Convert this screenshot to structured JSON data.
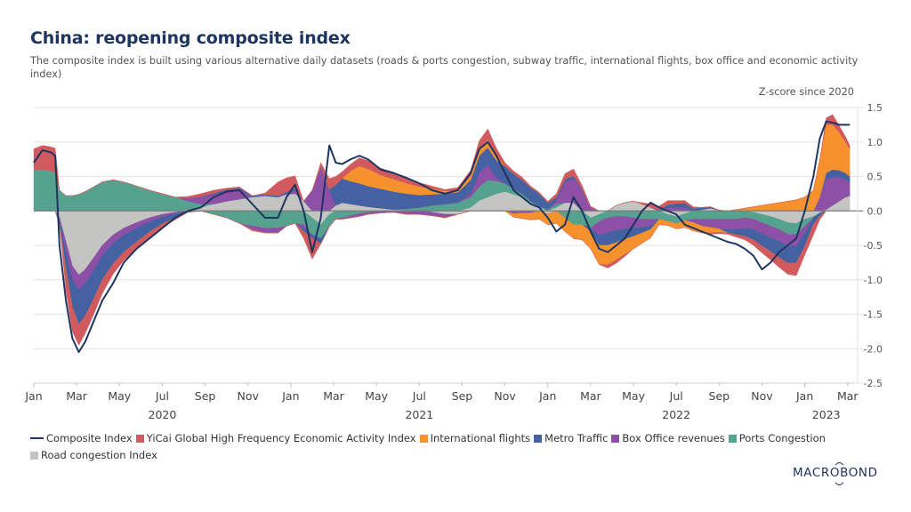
{
  "header": {
    "title": "China: reopening composite index",
    "subtitle": "The composite index is built using various alternative daily datasets (roads & ports congestion, subway traffic, international flights, box office and economic activity index)",
    "unit_label": "Z-score since 2020"
  },
  "logo": {
    "text": "MACROBOND"
  },
  "chart_data": {
    "type": "area",
    "subtype": "stacked-area-with-line",
    "title": "China: reopening composite index",
    "ylabel": "Z-score since 2020",
    "xlabel": "",
    "ylim": [
      -2.5,
      1.5
    ],
    "yticks": [
      1.5,
      1.0,
      0.5,
      0.0,
      -0.5,
      -1.0,
      -1.5,
      -2.0,
      -2.5
    ],
    "ytick_labels": [
      "1.5",
      "1.0",
      "0.5",
      "0.0",
      "-0.5",
      "-1.0",
      "-1.5",
      "-2.0",
      "-2.5"
    ],
    "y_axis_side": "right",
    "grid": true,
    "xlim_months": [
      0,
      38.3
    ],
    "xtick_months": [
      0,
      2,
      4,
      6,
      8,
      10,
      12,
      14,
      16,
      18,
      20,
      22,
      24,
      26,
      28,
      30,
      32,
      34,
      36,
      38
    ],
    "xtick_labels": [
      "Jan",
      "Mar",
      "May",
      "Jul",
      "Sep",
      "Nov",
      "Jan",
      "Mar",
      "May",
      "Jul",
      "Sep",
      "Nov",
      "Jan",
      "Mar",
      "May",
      "Jul",
      "Sep",
      "Nov",
      "Jan",
      "Mar"
    ],
    "year_labels": [
      {
        "month": 6,
        "label": "2020"
      },
      {
        "month": 18,
        "label": "2021"
      },
      {
        "month": 30,
        "label": "2022"
      },
      {
        "month": 37,
        "label": "2023"
      }
    ],
    "year_major_tick_months": [
      0,
      12,
      24,
      36
    ],
    "legend_position": "bottom",
    "x_months": [
      0,
      0.4,
      0.8,
      1.0,
      1.2,
      1.5,
      1.8,
      2.1,
      2.4,
      2.8,
      3.2,
      3.7,
      4.2,
      4.8,
      5.4,
      6.0,
      6.6,
      7.2,
      7.8,
      8.4,
      9.0,
      9.6,
      10.2,
      10.8,
      11.4,
      11.8,
      12.2,
      12.6,
      13.0,
      13.4,
      13.8,
      14.1,
      14.4,
      14.8,
      15.2,
      15.6,
      16.2,
      16.8,
      17.4,
      18.0,
      18.6,
      19.2,
      19.8,
      20.4,
      20.8,
      21.2,
      21.6,
      22.0,
      22.4,
      22.8,
      23.2,
      23.6,
      24.0,
      24.4,
      24.8,
      25.2,
      25.6,
      26.0,
      26.4,
      26.8,
      27.2,
      27.6,
      28.0,
      28.4,
      28.8,
      29.2,
      29.6,
      30.0,
      30.4,
      30.8,
      31.2,
      31.6,
      32.0,
      32.4,
      32.8,
      33.2,
      33.6,
      34.0,
      34.4,
      34.8,
      35.2,
      35.6,
      36.0,
      36.4,
      36.7,
      37.0,
      37.3,
      37.6,
      37.9,
      38.1
    ],
    "series": [
      {
        "name": "Road congestion Index",
        "color": "#c4c5c3",
        "values": [
          0,
          0,
          0,
          0,
          -0.1,
          -0.45,
          -0.8,
          -0.93,
          -0.85,
          -0.68,
          -0.5,
          -0.35,
          -0.25,
          -0.17,
          -0.1,
          -0.05,
          -0.02,
          0.02,
          0.05,
          0.1,
          0.14,
          0.17,
          0.2,
          0.22,
          0.2,
          0.24,
          0.25,
          0.14,
          -0.1,
          -0.2,
          -0.05,
          0.08,
          0.12,
          0.1,
          0.08,
          0.06,
          0.04,
          0.02,
          0.01,
          0,
          -0.02,
          -0.05,
          -0.05,
          0.05,
          0.15,
          0.2,
          0.25,
          0.28,
          0.24,
          0.2,
          0.12,
          0.05,
          -0.05,
          0.05,
          0.12,
          0.12,
          0,
          -0.1,
          -0.05,
          0.0,
          0.08,
          0.12,
          0.14,
          0.1,
          0.05,
          0.0,
          -0.05,
          -0.08,
          -0.04,
          0,
          0.02,
          0.04,
          0.01,
          0,
          0,
          0,
          -0.02,
          -0.05,
          -0.08,
          -0.12,
          -0.17,
          -0.18,
          -0.12,
          -0.08,
          -0.03,
          0.02,
          0.08,
          0.14,
          0.2,
          0.22
        ]
      },
      {
        "name": "Ports Congestion",
        "color": "#55a28f",
        "values": [
          0.6,
          0.6,
          0.58,
          0.56,
          0.3,
          0.22,
          0.22,
          0.24,
          0.28,
          0.35,
          0.42,
          0.45,
          0.42,
          0.36,
          0.3,
          0.25,
          0.2,
          0.12,
          0.05,
          -0.05,
          -0.1,
          -0.18,
          -0.22,
          -0.25,
          -0.25,
          -0.22,
          -0.18,
          -0.2,
          -0.25,
          -0.2,
          -0.18,
          -0.12,
          -0.1,
          -0.07,
          -0.04,
          -0.02,
          -0.01,
          0.0,
          0.02,
          0.05,
          0.08,
          0.1,
          0.12,
          0.15,
          0.2,
          0.25,
          0.18,
          0.12,
          0.08,
          0.05,
          0.02,
          0.02,
          0.02,
          0.05,
          -0.1,
          -0.2,
          -0.2,
          -0.15,
          -0.1,
          -0.1,
          -0.08,
          -0.08,
          -0.1,
          -0.12,
          -0.12,
          -0.12,
          -0.1,
          -0.1,
          -0.1,
          -0.12,
          -0.12,
          -0.12,
          -0.12,
          -0.12,
          -0.12,
          -0.1,
          -0.1,
          -0.12,
          -0.14,
          -0.15,
          -0.17,
          -0.16,
          -0.1,
          -0.02,
          0,
          0,
          0,
          0,
          0,
          0
        ]
      },
      {
        "name": "Box Office revenues",
        "color": "#8e4fa6",
        "values": [
          0,
          0,
          0,
          0,
          -0.05,
          -0.15,
          -0.2,
          -0.22,
          -0.2,
          -0.18,
          -0.15,
          -0.12,
          -0.1,
          -0.08,
          -0.06,
          -0.04,
          -0.02,
          0.05,
          0.1,
          0.14,
          0.15,
          0.15,
          -0.05,
          -0.07,
          -0.07,
          0.02,
          0.05,
          -0.05,
          0.3,
          0.65,
          0.3,
          0.0,
          -0.02,
          -0.03,
          -0.04,
          -0.03,
          -0.02,
          -0.02,
          -0.05,
          -0.05,
          -0.05,
          -0.05,
          0.0,
          0.05,
          0.2,
          0.22,
          0.05,
          0.0,
          -0.04,
          -0.03,
          -0.03,
          0.0,
          0,
          0.05,
          0.3,
          0.35,
          0.3,
          0.05,
          -0.2,
          -0.22,
          -0.2,
          -0.18,
          -0.15,
          -0.12,
          -0.1,
          0.0,
          0.05,
          0.05,
          0.05,
          -0.05,
          -0.1,
          -0.12,
          -0.14,
          -0.15,
          -0.15,
          -0.15,
          -0.15,
          -0.16,
          -0.17,
          -0.17,
          -0.17,
          -0.17,
          -0.1,
          0,
          0.2,
          0.45,
          0.4,
          0.35,
          0.25,
          0.2
        ]
      },
      {
        "name": "Metro Traffic",
        "color": "#4461a1",
        "values": [
          0,
          0,
          0,
          0,
          -0.05,
          -0.25,
          -0.4,
          -0.5,
          -0.48,
          -0.42,
          -0.35,
          -0.3,
          -0.25,
          -0.2,
          -0.15,
          -0.1,
          -0.06,
          -0.02,
          0.01,
          0.02,
          0.02,
          0.02,
          0.02,
          0.02,
          0.02,
          0.02,
          0.03,
          -0.05,
          -0.05,
          -0.08,
          0.02,
          0.3,
          0.35,
          0.33,
          0.32,
          0.3,
          0.28,
          0.26,
          0.22,
          0.18,
          0.16,
          0.15,
          0.15,
          0.2,
          0.25,
          0.25,
          0.25,
          0.25,
          0.22,
          0.2,
          0.2,
          0.18,
          0.1,
          0.05,
          0.04,
          0.04,
          0.02,
          -0.05,
          -0.15,
          -0.18,
          -0.18,
          -0.15,
          -0.12,
          -0.08,
          -0.05,
          0.02,
          0.04,
          0.06,
          0.06,
          0.04,
          0.03,
          0.02,
          0,
          -0.05,
          -0.08,
          -0.12,
          -0.15,
          -0.18,
          -0.2,
          -0.24,
          -0.25,
          -0.25,
          -0.2,
          -0.1,
          -0.05,
          0.08,
          0.12,
          0.1,
          0.1,
          0.08
        ]
      },
      {
        "name": "International flights",
        "color": "#f5922e",
        "values": [
          0,
          0,
          0,
          0,
          0,
          0,
          0,
          0,
          0,
          0,
          0,
          0,
          0,
          0,
          0,
          0,
          0,
          0,
          0,
          0,
          0,
          0,
          0,
          0,
          0,
          0,
          0,
          0,
          0,
          0,
          0,
          0,
          0,
          0.15,
          0.25,
          0.25,
          0.2,
          0.18,
          0.15,
          0.12,
          0.08,
          0.04,
          0.02,
          0.06,
          0.1,
          0.12,
          0.08,
          0,
          -0.05,
          -0.08,
          -0.1,
          -0.12,
          -0.15,
          -0.18,
          -0.2,
          -0.2,
          -0.22,
          -0.25,
          -0.28,
          -0.28,
          -0.25,
          -0.22,
          -0.18,
          -0.15,
          -0.12,
          -0.08,
          -0.06,
          -0.08,
          -0.1,
          -0.12,
          -0.1,
          -0.08,
          -0.05,
          0,
          0.02,
          0.04,
          0.06,
          0.08,
          0.1,
          0.12,
          0.14,
          0.16,
          0.2,
          0.3,
          0.55,
          0.7,
          0.65,
          0.55,
          0.45,
          0.4
        ]
      },
      {
        "name": "YiCai Global High Frequency Economic Activity Index",
        "color": "#d05a5e",
        "values": [
          0.3,
          0.35,
          0.35,
          0.35,
          0,
          -0.3,
          -0.35,
          -0.3,
          -0.25,
          -0.22,
          -0.2,
          -0.15,
          -0.12,
          -0.1,
          -0.08,
          -0.05,
          -0.03,
          0.02,
          0.04,
          0.04,
          0.02,
          0.01,
          -0.02,
          0.02,
          0.2,
          0.2,
          0.18,
          -0.1,
          -0.3,
          0.05,
          0.15,
          0.12,
          0.1,
          0.1,
          0.12,
          0.12,
          0.1,
          0.1,
          0.08,
          0.06,
          0.04,
          0.02,
          0.05,
          0.08,
          0.12,
          0.15,
          0.1,
          0.05,
          0.04,
          0.04,
          0.02,
          0.02,
          0.02,
          0.05,
          0.08,
          0.1,
          0.05,
          0.02,
          0.0,
          -0.05,
          -0.05,
          -0.03,
          0.0,
          0.02,
          0.05,
          0.05,
          0.06,
          0.04,
          0.04,
          0.02,
          0.0,
          -0.02,
          -0.02,
          -0.02,
          -0.03,
          -0.05,
          -0.08,
          -0.1,
          -0.12,
          -0.14,
          -0.16,
          -0.18,
          -0.12,
          -0.15,
          -0.05,
          0.1,
          0.15,
          0.1,
          0.08,
          0.05
        ]
      }
    ],
    "line_series": {
      "name": "Composite Index",
      "color": "#1e3560",
      "values": [
        0.7,
        0.88,
        0.85,
        0.8,
        -0.5,
        -1.3,
        -1.85,
        -2.05,
        -1.9,
        -1.6,
        -1.3,
        -1.05,
        -0.75,
        -0.55,
        -0.4,
        -0.25,
        -0.1,
        0.0,
        0.05,
        0.2,
        0.28,
        0.3,
        0.1,
        -0.1,
        -0.1,
        0.2,
        0.38,
        0.0,
        -0.6,
        -0.1,
        0.95,
        0.7,
        0.68,
        0.75,
        0.8,
        0.75,
        0.6,
        0.55,
        0.48,
        0.4,
        0.3,
        0.25,
        0.3,
        0.55,
        0.9,
        1.0,
        0.8,
        0.55,
        0.3,
        0.2,
        0.1,
        0.05,
        -0.1,
        -0.3,
        -0.2,
        0.2,
        0.0,
        -0.3,
        -0.55,
        -0.6,
        -0.5,
        -0.4,
        -0.2,
        0.0,
        0.12,
        0.05,
        0.0,
        -0.05,
        -0.2,
        -0.25,
        -0.3,
        -0.35,
        -0.4,
        -0.45,
        -0.48,
        -0.55,
        -0.65,
        -0.85,
        -0.75,
        -0.6,
        -0.5,
        -0.4,
        0.0,
        0.5,
        1.05,
        1.3,
        1.28,
        1.25,
        1.25,
        1.25
      ]
    },
    "legend": [
      {
        "name": "Composite Index",
        "kind": "line",
        "color": "#1e3560"
      },
      {
        "name": "YiCai Global High Frequency Economic Activity Index",
        "kind": "box",
        "color": "#d05a5e"
      },
      {
        "name": "International flights",
        "kind": "box",
        "color": "#f5922e"
      },
      {
        "name": "Metro Traffic",
        "kind": "box",
        "color": "#4461a1"
      },
      {
        "name": "Box Office revenues",
        "kind": "box",
        "color": "#8e4fa6"
      },
      {
        "name": "Ports Congestion",
        "kind": "box",
        "color": "#55a28f"
      },
      {
        "name": "Road congestion Index",
        "kind": "box",
        "color": "#c4c5c3"
      }
    ],
    "colors": {
      "grid": "#e2e2e2",
      "zero_line": "#7a7a7a",
      "axis_text": "#555555"
    }
  }
}
